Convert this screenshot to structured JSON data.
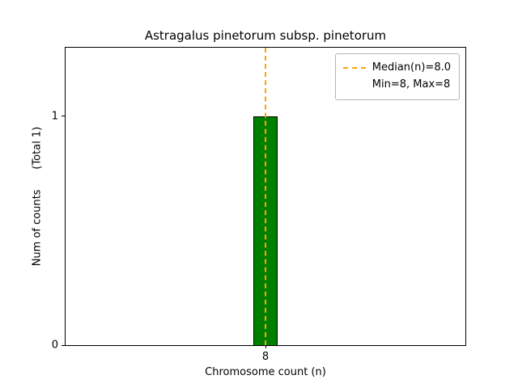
{
  "figure": {
    "title": "Astragalus pinetorum subsp. pinetorum",
    "xlabel": "Chromosome count (n)",
    "ylabel": "Num of counts      (Total 1)"
  },
  "chart_data": {
    "type": "bar",
    "title": "Astragalus pinetorum subsp. pinetorum",
    "xlabel": "Chromosome count (n)",
    "ylabel": "Num of counts (Total 1)",
    "total_counts": 1,
    "categories": [
      "8"
    ],
    "values": [
      1
    ],
    "ylim": [
      0,
      1.3
    ],
    "yticks": [
      "0",
      "1"
    ],
    "xticks": [
      "8"
    ],
    "bar_color": "#008000",
    "bar_edge_color": "#000000",
    "median_line": {
      "value": 8.0,
      "color": "#FFA500",
      "style": "dashed"
    },
    "stats": {
      "min": 8,
      "max": 8,
      "median": 8.0
    },
    "legend": {
      "position": "upper right",
      "entries": [
        {
          "label": "Median(n)=8.0",
          "marker": "dashed-line",
          "color": "#FFA500"
        },
        {
          "label": "Min=8, Max=8",
          "marker": "none"
        }
      ]
    },
    "grid": false
  }
}
